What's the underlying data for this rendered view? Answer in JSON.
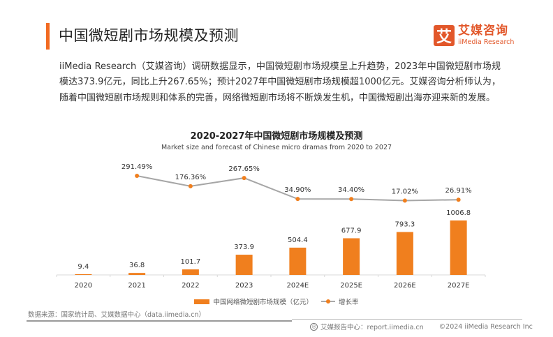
{
  "header": {
    "title": "中国微短剧市场规模及预测",
    "accent_color": "#f26a21"
  },
  "logo": {
    "mark": "艾",
    "cn": "艾媒咨询",
    "en": "iiMedia Research",
    "color": "#e2572a"
  },
  "paragraph": "iiMedia Research（艾媒咨询）调研数据显示，中国微短剧市场规模呈上升趋势，2023年中国微短剧市场规模达373.9亿元，同比上升267.65%；预计2027年中国微短剧市场规模超1000亿元。艾媒咨询分析师认为，随着中国微短剧市场规则和体系的完善，网络微短剧市场将不断焕发生机，中国微短剧出海亦迎来新的发展。",
  "chart_data": {
    "type": "bar",
    "title": "2020-2027年中国微短剧市场规模及预测",
    "subtitle": "Market size and forecast of Chinese micro dramas from 2020 to 2027",
    "categories": [
      "2020",
      "2021",
      "2022",
      "2023",
      "2024E",
      "2025E",
      "2026E",
      "2027E"
    ],
    "series": [
      {
        "name": "中国网络微短剧市场规模（亿元）",
        "type": "bar",
        "color": "#f07f1e",
        "values": [
          9.4,
          36.8,
          101.7,
          373.9,
          504.4,
          677.9,
          793.3,
          1006.8
        ],
        "labels": [
          "9.4",
          "36.8",
          "101.7",
          "373.9",
          "504.4",
          "677.9",
          "793.3",
          "1006.8"
        ]
      },
      {
        "name": "增长率",
        "type": "line",
        "line_color": "#a6a6a6",
        "marker_color": "#f07f1e",
        "values": [
          null,
          291.49,
          176.36,
          267.65,
          34.9,
          34.4,
          17.02,
          26.91
        ],
        "labels": [
          null,
          "291.49%",
          "176.36%",
          "267.65%",
          "34.90%",
          "34.40%",
          "17.02%",
          "26.91%"
        ]
      }
    ],
    "xlabel": "",
    "ylabel": "",
    "grid": false,
    "legend": "bottom-center"
  },
  "legend": {
    "bar_label": "中国网络微短剧市场规模（亿元）",
    "line_label": "增长率"
  },
  "source": "数据来源：国家统计局、艾媒数据中心（data.iimedia.cn）",
  "footer": {
    "report_center": "艾媒报告中心：report.iimedia.cn",
    "copyright": "©2024  iiMedia Research Inc"
  }
}
